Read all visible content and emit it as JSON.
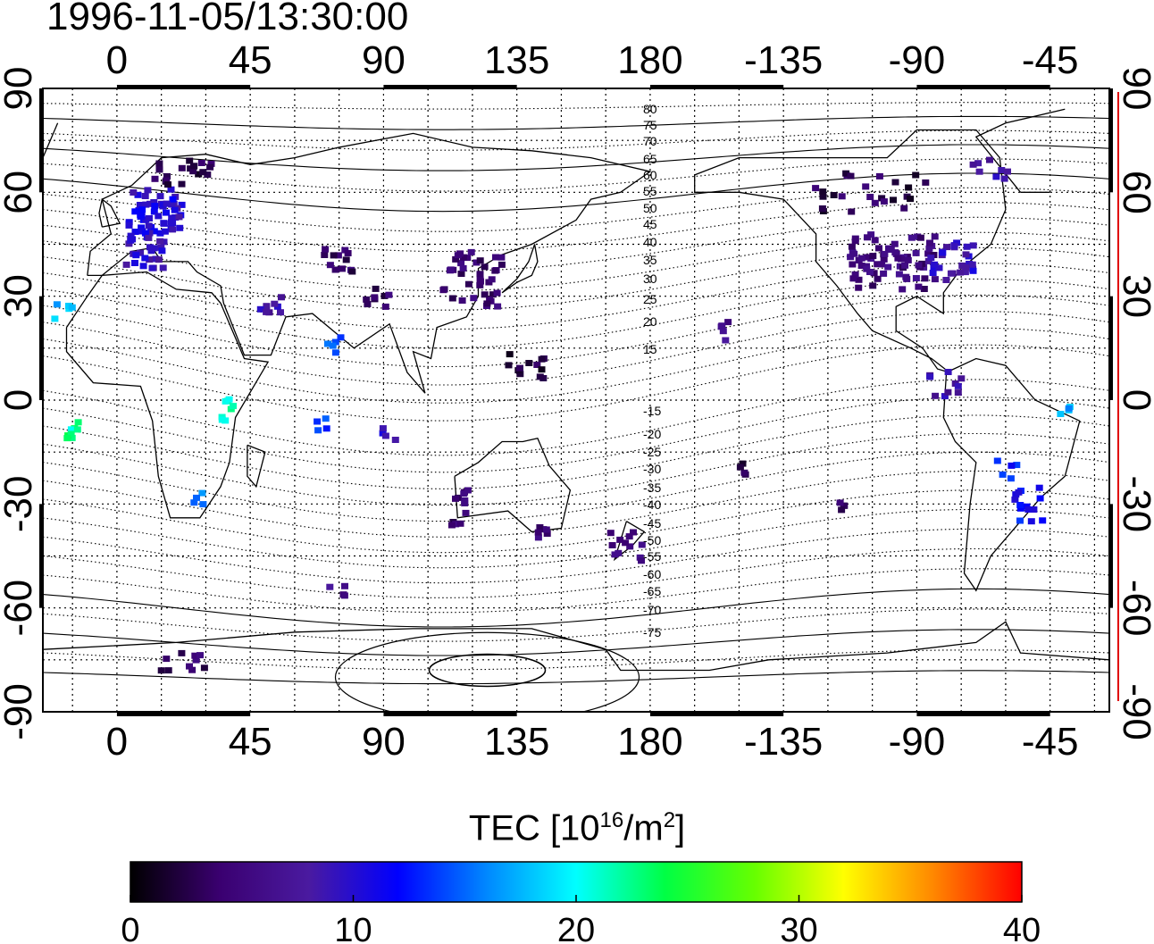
{
  "map": {
    "title": "1996-11-05/13:30:00",
    "top_lon_ticks": [
      "0",
      "45",
      "90",
      "135",
      "180",
      "-135",
      "-90",
      "-45"
    ],
    "bottom_lon_ticks": [
      "0",
      "45",
      "90",
      "135",
      "180",
      "-135",
      "-90",
      "-45"
    ],
    "left_lat_ticks": [
      "90",
      "60",
      "30",
      "0",
      "-30",
      "-60",
      "-90"
    ],
    "right_lat_ticks": [
      "90",
      "60",
      "30",
      "0",
      "-30",
      "-60",
      "-90"
    ],
    "magnetic_lat_labels_north": [
      "80",
      "75",
      "70",
      "65",
      "60",
      "55",
      "50",
      "45",
      "40",
      "35",
      "30",
      "25",
      "20",
      "15"
    ],
    "magnetic_lat_labels_south": [
      "-15",
      "-20",
      "-25",
      "-30",
      "-35",
      "-40",
      "-45",
      "-50",
      "-55",
      "-60",
      "-65",
      "-70",
      "-75"
    ],
    "lon_range": [
      -25,
      335
    ],
    "lat_range": [
      -90,
      90
    ]
  },
  "colorbar": {
    "title_prefix": "TEC  [10",
    "title_exp": "16",
    "title_mid": "/m",
    "title_exp2": "2",
    "title_suffix": "]",
    "range": [
      0,
      40
    ],
    "ticks": [
      "0",
      "10",
      "20",
      "30",
      "40"
    ],
    "colormap": [
      "#000000",
      "#3a0070",
      "#4a1aa0",
      "#0000ff",
      "#0088ff",
      "#00ffff",
      "#00ff44",
      "#66ff00",
      "#ffff00",
      "#ff8800",
      "#ff0000"
    ]
  },
  "tec_clusters": [
    {
      "lon": 13,
      "lat": 54,
      "value": 10,
      "n": 60,
      "spread": [
        9,
        7
      ]
    },
    {
      "lon": 8,
      "lat": 43,
      "value": 9,
      "n": 25,
      "spread": [
        8,
        5
      ]
    },
    {
      "lon": 22,
      "lat": 66,
      "value": 3,
      "n": 20,
      "spread": [
        10,
        4
      ]
    },
    {
      "lon": -18,
      "lat": 26,
      "value": 17,
      "n": 5,
      "spread": [
        3,
        3
      ]
    },
    {
      "lon": -15,
      "lat": -8,
      "value": 22,
      "n": 8,
      "spread": [
        2,
        3
      ]
    },
    {
      "lon": 38,
      "lat": -3,
      "value": 22,
      "n": 8,
      "spread": [
        3,
        4
      ]
    },
    {
      "lon": 28,
      "lat": -28,
      "value": 16,
      "n": 4,
      "spread": [
        2,
        2
      ]
    },
    {
      "lon": 52,
      "lat": 28,
      "value": 8,
      "n": 8,
      "spread": [
        4,
        3
      ]
    },
    {
      "lon": 74,
      "lat": 16,
      "value": 14,
      "n": 5,
      "spread": [
        3,
        3
      ]
    },
    {
      "lon": 68,
      "lat": -8,
      "value": 13,
      "n": 4,
      "spread": [
        3,
        3
      ]
    },
    {
      "lon": 92,
      "lat": -10,
      "value": 10,
      "n": 4,
      "spread": [
        3,
        3
      ]
    },
    {
      "lon": 75,
      "lat": 40,
      "value": 4,
      "n": 12,
      "spread": [
        5,
        4
      ]
    },
    {
      "lon": 88,
      "lat": 30,
      "value": 4,
      "n": 8,
      "spread": [
        4,
        3
      ]
    },
    {
      "lon": 120,
      "lat": 35,
      "value": 4,
      "n": 40,
      "spread": [
        10,
        8
      ]
    },
    {
      "lon": 138,
      "lat": 10,
      "value": 2,
      "n": 12,
      "spread": [
        7,
        4
      ]
    },
    {
      "lon": 116,
      "lat": -30,
      "value": 4,
      "n": 12,
      "spread": [
        3,
        6
      ]
    },
    {
      "lon": 145,
      "lat": -38,
      "value": 5,
      "n": 6,
      "spread": [
        5,
        2
      ]
    },
    {
      "lon": 172,
      "lat": -42,
      "value": 6,
      "n": 12,
      "spread": [
        6,
        5
      ]
    },
    {
      "lon": 25,
      "lat": -75,
      "value": 4,
      "n": 10,
      "spread": [
        10,
        3
      ]
    },
    {
      "lon": 75,
      "lat": -55,
      "value": 6,
      "n": 4,
      "spread": [
        4,
        2
      ]
    },
    {
      "lon": -98,
      "lat": 40,
      "value": 5,
      "n": 70,
      "spread": [
        15,
        8
      ]
    },
    {
      "lon": -78,
      "lat": 40,
      "value": 9,
      "n": 30,
      "spread": [
        8,
        6
      ]
    },
    {
      "lon": -105,
      "lat": 60,
      "value": 3,
      "n": 25,
      "spread": [
        20,
        6
      ]
    },
    {
      "lon": -65,
      "lat": 68,
      "value": 8,
      "n": 8,
      "spread": [
        6,
        4
      ]
    },
    {
      "lon": -155,
      "lat": 20,
      "value": 6,
      "n": 5,
      "spread": [
        2,
        3
      ]
    },
    {
      "lon": -80,
      "lat": 5,
      "value": 8,
      "n": 10,
      "spread": [
        6,
        4
      ]
    },
    {
      "lon": -52,
      "lat": -30,
      "value": 12,
      "n": 14,
      "spread": [
        5,
        5
      ]
    },
    {
      "lon": -40,
      "lat": -2,
      "value": 17,
      "n": 4,
      "spread": [
        2,
        2
      ]
    },
    {
      "lon": -60,
      "lat": -20,
      "value": 12,
      "n": 5,
      "spread": [
        4,
        3
      ]
    },
    {
      "lon": -148,
      "lat": -20,
      "value": 3,
      "n": 4,
      "spread": [
        2,
        2
      ]
    },
    {
      "lon": -115,
      "lat": -30,
      "value": 3,
      "n": 4,
      "spread": [
        2,
        2
      ]
    }
  ]
}
